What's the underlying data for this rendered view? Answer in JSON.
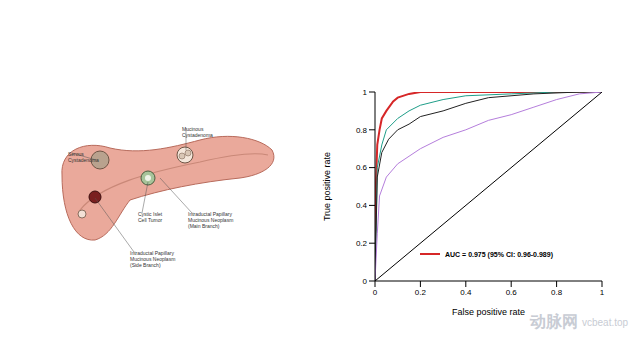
{
  "chart_data": {
    "type": "line",
    "x_label": "False positive rate",
    "y_label": "True positive rate",
    "xlim": [
      0,
      1
    ],
    "ylim": [
      0,
      1
    ],
    "xticks": [
      0,
      0.2,
      0.4,
      0.6,
      0.8,
      1
    ],
    "yticks": [
      0,
      0.2,
      0.4,
      0.6,
      0.8,
      1
    ],
    "grid": false,
    "legend": "lower right",
    "series": [
      {
        "name": "AUC = 0.975 (95% CI: 0.96-0.989)",
        "color": "#d62728",
        "x": [
          0,
          0,
          0.005,
          0.01,
          0.02,
          0.03,
          0.05,
          0.08,
          0.1,
          0.15,
          0.2,
          0.3,
          1
        ],
        "values": [
          0,
          0.3,
          0.55,
          0.72,
          0.8,
          0.86,
          0.9,
          0.95,
          0.97,
          0.99,
          1,
          1,
          1
        ]
      },
      {
        "name": null,
        "color": "#1f9e89",
        "x": [
          0,
          0.01,
          0.03,
          0.05,
          0.1,
          0.15,
          0.2,
          0.3,
          0.4,
          0.6,
          0.8,
          1
        ],
        "values": [
          0,
          0.6,
          0.72,
          0.8,
          0.86,
          0.9,
          0.93,
          0.96,
          0.98,
          0.99,
          1,
          1
        ]
      },
      {
        "name": null,
        "color": "#222222",
        "x": [
          0,
          0.01,
          0.03,
          0.06,
          0.1,
          0.15,
          0.2,
          0.3,
          0.4,
          0.5,
          0.7,
          0.9,
          1
        ],
        "values": [
          0,
          0.55,
          0.68,
          0.75,
          0.8,
          0.83,
          0.87,
          0.9,
          0.94,
          0.97,
          0.99,
          1,
          1
        ]
      },
      {
        "name": null,
        "color": "#b57edc",
        "x": [
          0,
          0.01,
          0.02,
          0.05,
          0.1,
          0.2,
          0.3,
          0.4,
          0.5,
          0.6,
          0.7,
          0.8,
          0.9,
          1
        ],
        "values": [
          0,
          0.25,
          0.45,
          0.55,
          0.62,
          0.7,
          0.76,
          0.8,
          0.85,
          0.88,
          0.92,
          0.96,
          0.99,
          1
        ]
      },
      {
        "name": null,
        "color": "#000000",
        "x": [
          0,
          1
        ],
        "values": [
          0,
          1
        ]
      }
    ]
  },
  "illustration": {
    "labels": [
      {
        "lines": [
          "Serous",
          "Cystadenoma"
        ]
      },
      {
        "lines": [
          "Mucinous",
          "Cystadenoma"
        ]
      },
      {
        "lines": [
          "Cystic Islet",
          "Cell Tumor"
        ]
      },
      {
        "lines": [
          "Intraductal Papillary",
          "Mucinous Neoplasm",
          "(Main Branch)"
        ]
      },
      {
        "lines": [
          "Intraductal Papillary",
          "Mucinous Neoplasm",
          "(Side Branch)"
        ]
      }
    ]
  },
  "watermark": {
    "logo": "动脉网",
    "site": "vcbeat.top"
  }
}
